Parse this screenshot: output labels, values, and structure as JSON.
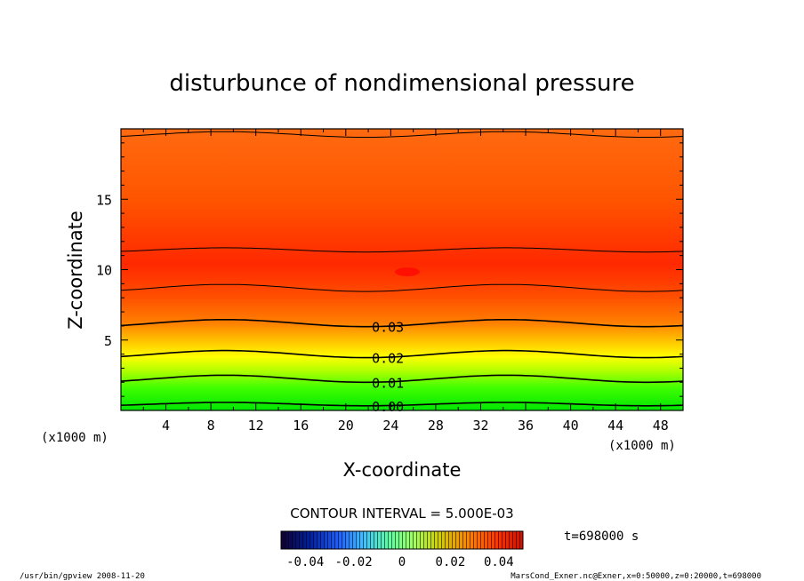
{
  "chart_data": {
    "type": "contour",
    "title": "disturbunce of nondimensional pressure",
    "xlabel": "X-coordinate",
    "ylabel": "Z-coordinate",
    "x_unit_left": "(x1000 m)",
    "x_unit_right": "(x1000 m)",
    "x_ticks": [
      "4",
      "8",
      "12",
      "16",
      "20",
      "24",
      "28",
      "32",
      "36",
      "40",
      "44",
      "48"
    ],
    "y_ticks": [
      "5",
      "10",
      "15"
    ],
    "xlim": [
      0,
      50
    ],
    "ylim": [
      0,
      20
    ],
    "contour_levels": [
      {
        "label": "0.00",
        "value": 0.0,
        "z_base": 0.45,
        "amp": 0.12
      },
      {
        "label": "0.01",
        "value": 0.01,
        "z_base": 2.25,
        "amp": 0.25
      },
      {
        "label": "0.02",
        "value": 0.02,
        "z_base": 4.0,
        "amp": 0.25
      },
      {
        "label": "0.03",
        "value": 0.03,
        "z_base": 6.2,
        "amp": 0.25
      },
      {
        "label": "",
        "value": 0.035,
        "z_base": 8.7,
        "amp": 0.25
      },
      {
        "label": "",
        "value": 0.04,
        "z_base": 11.4,
        "amp": 0.15
      },
      {
        "label": "",
        "value": 0.035,
        "z_base": 19.6,
        "amp": 0.2
      }
    ],
    "contour_interval_text": "CONTOUR INTERVAL = 5.000E-03",
    "colorbar": {
      "range": [
        -0.05,
        0.05
      ],
      "ticks": [
        "-0.04",
        "-0.02",
        "0",
        "0.02",
        "0.04"
      ]
    },
    "time_label": "t=698000 s"
  },
  "footer": {
    "left": "/usr/bin/gpview   2008-11-20",
    "right": "MarsCond_Exner.nc@Exner,x=0:50000,z=0:20000,t=698000"
  },
  "colors": {
    "green": "#00e000",
    "yellow": "#ffff00",
    "orange": "#ff6a00",
    "red": "#ff2000"
  }
}
